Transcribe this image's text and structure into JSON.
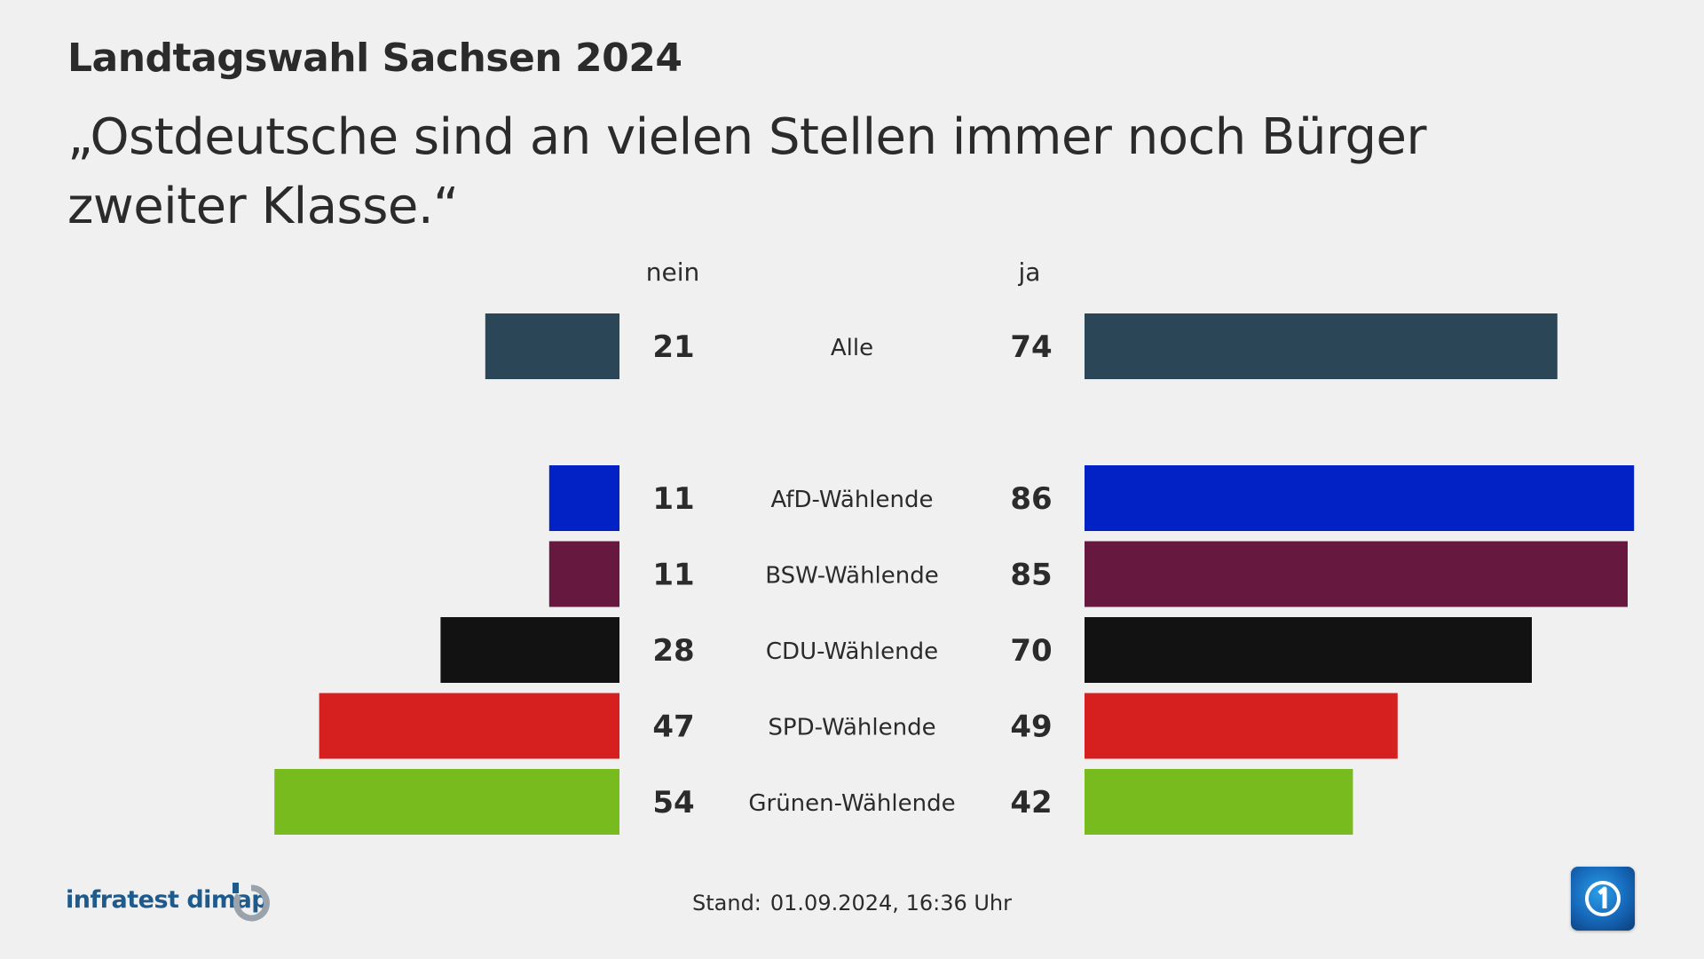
{
  "pretitle": "Landtagswahl Sachsen 2024",
  "title": "„Ostdeutsche sind an vielen Stellen immer noch Bürger zweiter Klasse.“",
  "footer": {
    "source": "infratest dimap",
    "stand_label": "Stand:",
    "stand_value": "01.09.2024, 16:36 Uhr",
    "source_logo_icon": "infratest-dimap-logo-icon",
    "broadcaster_logo_icon": "das-erste-logo-icon"
  },
  "chart_data": {
    "type": "bar",
    "orientation": "horizontal-diverging",
    "title": "„Ostdeutsche sind an vielen Stellen immer noch Bürger zweiter Klasse.“",
    "categories": [
      "Alle",
      "AfD-Wählende",
      "BSW-Wählende",
      "CDU-Wählende",
      "SPD-Wählende",
      "Grünen-Wählende"
    ],
    "series": [
      {
        "name": "nein",
        "values": [
          21,
          11,
          11,
          28,
          47,
          54
        ]
      },
      {
        "name": "ja",
        "values": [
          74,
          86,
          85,
          70,
          49,
          42
        ]
      }
    ],
    "colors": [
      "#2b4657",
      "#0322c6",
      "#66183f",
      "#121212",
      "#d61f1f",
      "#78bb1e"
    ],
    "group_gap_after_index": 0,
    "unit": "%"
  }
}
